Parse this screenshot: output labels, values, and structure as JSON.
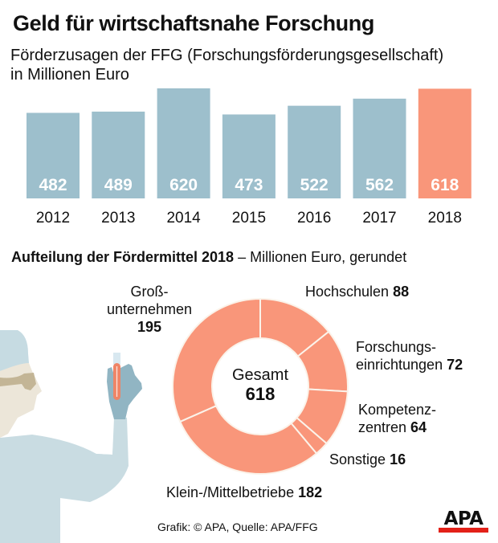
{
  "header": {
    "title": "Geld für wirtschaftsnahe Forschung",
    "subtitle_line1": "Förderzusagen der FFG (Forschungsförderungsgesellschaft)",
    "subtitle_line2": "in Millionen Euro"
  },
  "colors": {
    "bar_default": "#9dbfcc",
    "bar_highlight": "#f9967a",
    "donut": "#f9967a",
    "divider": "#fbf3ea"
  },
  "chart_data": [
    {
      "type": "bar",
      "title": "Förderzusagen der FFG (Forschungsförderungsgesellschaft)",
      "ylabel": "Millionen Euro",
      "xlabel": "",
      "categories": [
        "2012",
        "2013",
        "2014",
        "2015",
        "2016",
        "2017",
        "2018"
      ],
      "values": [
        482,
        489,
        620,
        473,
        522,
        562,
        618
      ],
      "highlight": "2018",
      "data_labels": [
        "482",
        "489",
        "620",
        "473",
        "522",
        "562",
        "618"
      ],
      "grid": false
    },
    {
      "type": "pie",
      "variant": "donut",
      "title_bold": "Aufteilung der Fördermittel 2018",
      "title_rest": " – Millionen Euro, gerundet",
      "center_label": "Gesamt",
      "center_value": "618",
      "slices": [
        {
          "label": "Hochschulen",
          "value": 88
        },
        {
          "label": "Forschungseinrichtungen",
          "value": 72
        },
        {
          "label": "Kompetenzzentren",
          "value": 64
        },
        {
          "label": "Sonstige",
          "value": 16
        },
        {
          "label": "Klein-/Mittelbetriebe",
          "value": 182
        },
        {
          "label": "Großunternehmen",
          "value": 195
        }
      ]
    }
  ],
  "donut_labels": {
    "gross_l1": "Groß-",
    "gross_l2": "unternehmen",
    "gross_v": "195",
    "hoch_l": "Hochschulen ",
    "hoch_v": "88",
    "forsch_l1": "Forschungs-",
    "forsch_l2": "einrichtungen ",
    "forsch_v": "72",
    "komp_l1": "Kompetenz-",
    "komp_l2": "zentren ",
    "komp_v": "64",
    "sonst_l": "Sonstige ",
    "sonst_v": "16",
    "klein_l": "Klein-/Mittelbetriebe ",
    "klein_v": "182"
  },
  "footer": {
    "credit": "Grafik: © APA, Quelle: APA/FFG",
    "logo": "APA"
  }
}
